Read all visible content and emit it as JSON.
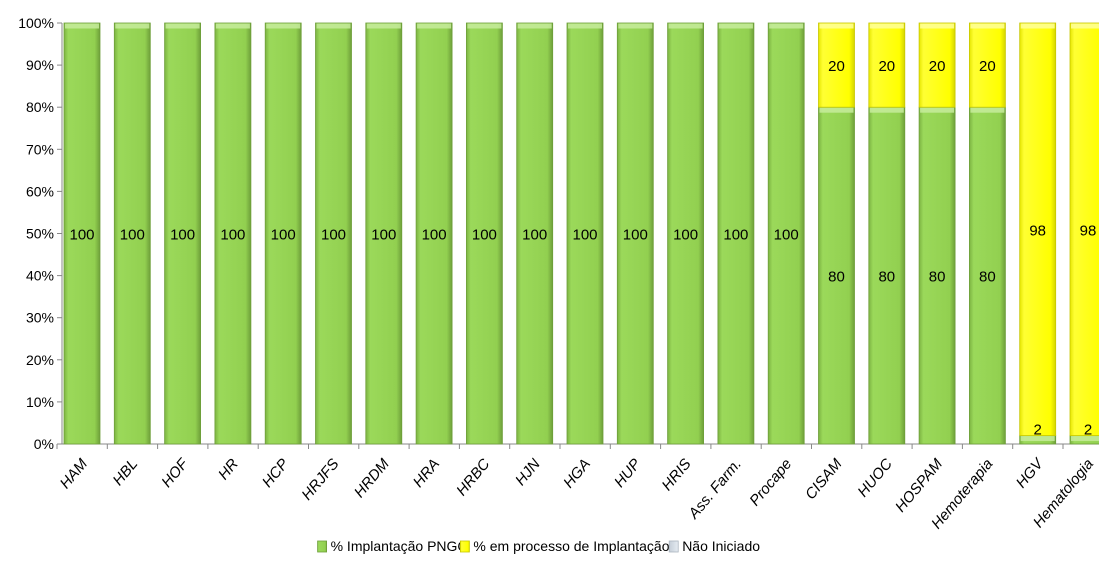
{
  "chart_data": {
    "type": "bar",
    "stacked": "percent",
    "categories": [
      "HAM",
      "HBL",
      "HOF",
      "HR",
      "HCP",
      "HRJFS",
      "HRDM",
      "HRA",
      "HRBC",
      "HJN",
      "HGA",
      "HUP",
      "HRIS",
      "Ass. Farm.",
      "Procape",
      "CISAM",
      "HUOC",
      "HOSPAM",
      "Hemoterapia",
      "HGV",
      "Hematologia"
    ],
    "series": [
      {
        "name": "% Implantação PNGC",
        "color": "#92d050",
        "values": [
          100,
          100,
          100,
          100,
          100,
          100,
          100,
          100,
          100,
          100,
          100,
          100,
          100,
          100,
          100,
          80,
          80,
          80,
          80,
          2,
          2
        ]
      },
      {
        "name": "% em processo de Implantação",
        "color": "#ffff00",
        "values": [
          0,
          0,
          0,
          0,
          0,
          0,
          0,
          0,
          0,
          0,
          0,
          0,
          0,
          0,
          0,
          20,
          20,
          20,
          20,
          98,
          98
        ]
      },
      {
        "name": "Não Iniciado",
        "color": "#d9e1ea",
        "values": [
          0,
          0,
          0,
          0,
          0,
          0,
          0,
          0,
          0,
          0,
          0,
          0,
          0,
          0,
          0,
          0,
          0,
          0,
          0,
          0,
          0
        ]
      }
    ],
    "y_ticks": [
      "0%",
      "10%",
      "20%",
      "30%",
      "40%",
      "50%",
      "60%",
      "70%",
      "80%",
      "90%",
      "100%"
    ],
    "ylim": [
      0,
      100
    ],
    "grid": false,
    "legend_position": "bottom",
    "data_labels": true
  }
}
